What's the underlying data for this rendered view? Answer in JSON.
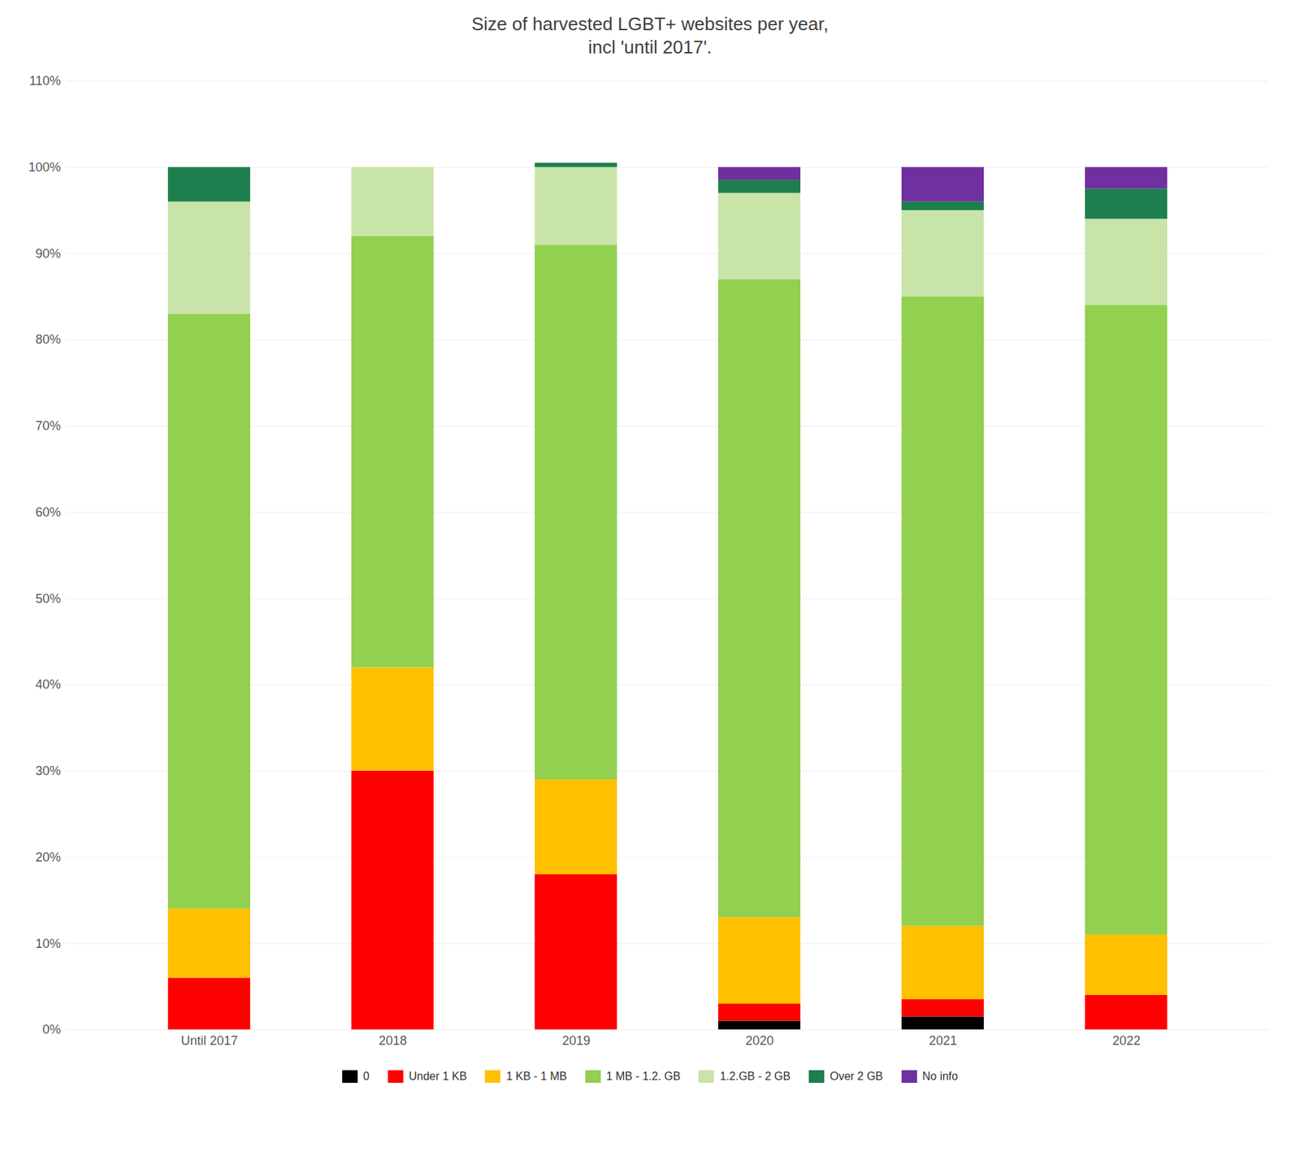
{
  "chart_data": {
    "type": "bar",
    "stacked": true,
    "title": "Size of harvested LGBT+ websites per year,\nincl 'until 2017'.",
    "categories": [
      "Until 2017",
      "2018",
      "2019",
      "2020",
      "2021",
      "2022"
    ],
    "series": [
      {
        "name": "0",
        "color": "#000000",
        "values": [
          0.0,
          0.0,
          0.0,
          1.0,
          1.5,
          0.0
        ]
      },
      {
        "name": "Under 1 KB",
        "color": "#FF0000",
        "values": [
          6.0,
          30.0,
          18.0,
          2.0,
          2.0,
          4.0
        ]
      },
      {
        "name": "1 KB - 1 MB",
        "color": "#FFC000",
        "values": [
          8.0,
          12.0,
          11.0,
          10.0,
          8.5,
          7.0
        ]
      },
      {
        "name": "1 MB - 1.2. GB",
        "color": "#92D050",
        "values": [
          69.0,
          50.0,
          62.0,
          74.0,
          73.0,
          73.0
        ]
      },
      {
        "name": "1.2.GB - 2 GB",
        "color": "#C9E4A8",
        "values": [
          13.0,
          8.0,
          9.0,
          10.0,
          10.0,
          10.0
        ]
      },
      {
        "name": "Over 2 GB",
        "color": "#1E7F4E",
        "values": [
          4.0,
          0.0,
          0.5,
          1.5,
          1.0,
          3.5
        ]
      },
      {
        "name": "No info",
        "color": "#7030A0",
        "values": [
          0.0,
          0.0,
          0.0,
          1.5,
          4.0,
          2.5
        ]
      }
    ],
    "ylim": [
      0,
      110
    ],
    "yticks": [
      {
        "value": 0,
        "label": "0%"
      },
      {
        "value": 10,
        "label": "10%"
      },
      {
        "value": 20,
        "label": "20%"
      },
      {
        "value": 30,
        "label": "30%"
      },
      {
        "value": 40,
        "label": "40%"
      },
      {
        "value": 50,
        "label": "50%"
      },
      {
        "value": 60,
        "label": "60%"
      },
      {
        "value": 70,
        "label": "70%"
      },
      {
        "value": 80,
        "label": "80%"
      },
      {
        "value": 90,
        "label": "90%"
      },
      {
        "value": 100,
        "label": "100%"
      },
      {
        "value": 110,
        "label": "110%"
      }
    ],
    "grid": true,
    "legend": "bottom"
  }
}
